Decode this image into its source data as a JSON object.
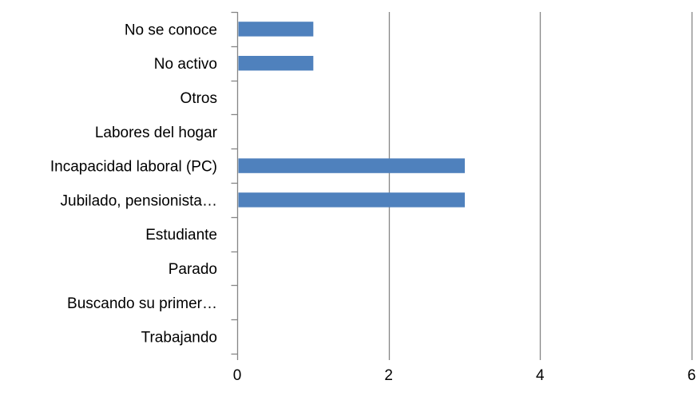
{
  "chart_data": {
    "type": "bar",
    "orientation": "horizontal",
    "categories": [
      "Trabajando",
      "Buscando su primer…",
      "Parado",
      "Estudiante",
      "Jubilado, pensionista…",
      "Incapacidad laboral (PC)",
      "Labores del hogar",
      "Otros",
      "No activo",
      "No se conoce"
    ],
    "values": [
      0,
      0,
      0,
      0,
      3,
      3,
      0,
      0,
      1,
      1
    ],
    "xlim": [
      0,
      6
    ],
    "x_ticks": [
      0,
      2,
      4,
      6
    ],
    "x_tick_labels": [
      "0",
      "2",
      "4",
      "6"
    ],
    "grid": "vertical major gridlines",
    "legend": "none",
    "title": "",
    "xlabel": "",
    "ylabel": "",
    "bar_color": "#4f81bd",
    "grid_color": "#868686"
  }
}
